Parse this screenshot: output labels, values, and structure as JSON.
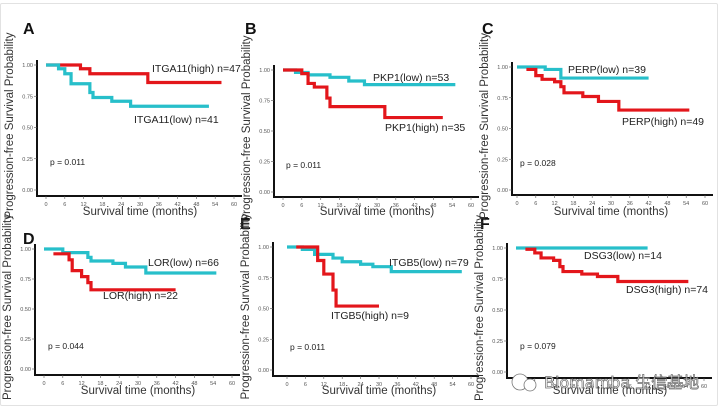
{
  "colors": {
    "high": "#e3161b",
    "low": "#27bfca"
  },
  "watermark": {
    "text": "Biomamba 生信基地",
    "icon": "wechat-icon"
  },
  "chart_data": [
    {
      "type": "line",
      "panel": "A",
      "xlabel": "Survival time (months)",
      "ylabel": "Progression-free Survival Probability",
      "xlim": [
        0,
        60
      ],
      "ylim": [
        0,
        1
      ],
      "xticks": [
        "0",
        "6",
        "12",
        "18",
        "24",
        "30",
        "36",
        "42",
        "48",
        "54",
        "60"
      ],
      "yticks": [
        "0.00",
        "0.25",
        "0.50",
        "0.75",
        "1.00"
      ],
      "p_value": "p = 0.011",
      "series": [
        {
          "name": "ITGA11(high) n=47",
          "group": "high",
          "x": [
            0,
            11,
            14,
            32.5,
            56
          ],
          "y": [
            1.0,
            0.97,
            0.93,
            0.86,
            0.86
          ]
        },
        {
          "name": "ITGA11(low) n=41",
          "group": "low",
          "x": [
            0,
            4,
            6,
            8,
            14,
            15,
            21,
            27,
            52
          ],
          "y": [
            1.0,
            0.97,
            0.93,
            0.85,
            0.78,
            0.74,
            0.71,
            0.67,
            0.67
          ]
        }
      ],
      "legend_pos": {
        "high": "right-top",
        "low": "right-middle"
      }
    },
    {
      "type": "line",
      "panel": "B",
      "xlabel": "Survival time (months)",
      "ylabel": "Progression-free Survival Probability",
      "xlim": [
        0,
        60
      ],
      "ylim": [
        0,
        1
      ],
      "xticks": [
        "0",
        "6",
        "12",
        "18",
        "24",
        "30",
        "36",
        "42",
        "48",
        "54",
        "60"
      ],
      "yticks": [
        "0.00",
        "0.25",
        "0.50",
        "0.75",
        "1.00"
      ],
      "p_value": "p = 0.011",
      "series": [
        {
          "name": "PKP1(low) n=53",
          "group": "low",
          "x": [
            0,
            4,
            8,
            15,
            21,
            26,
            55
          ],
          "y": [
            1.0,
            0.98,
            0.96,
            0.94,
            0.91,
            0.88,
            0.88
          ]
        },
        {
          "name": "PKP1(high) n=35",
          "group": "high",
          "x": [
            0,
            6,
            8,
            10,
            14,
            15,
            32.5,
            51
          ],
          "y": [
            1.0,
            0.97,
            0.89,
            0.86,
            0.77,
            0.7,
            0.61,
            0.61
          ]
        }
      ]
    },
    {
      "type": "line",
      "panel": "C",
      "xlabel": "Survival time (months)",
      "ylabel": "Progression-free Survival Probability",
      "xlim": [
        0,
        60
      ],
      "ylim": [
        0,
        1
      ],
      "xticks": [
        "0",
        "6",
        "12",
        "18",
        "24",
        "30",
        "36",
        "42",
        "48",
        "54",
        "60"
      ],
      "yticks": [
        "0.00",
        "0.25",
        "0.50",
        "0.75",
        "1.00"
      ],
      "p_value": "p = 0.028",
      "series": [
        {
          "name": "PERP(low) n=39",
          "group": "low",
          "x": [
            0,
            9,
            14,
            42
          ],
          "y": [
            1.0,
            0.98,
            0.91,
            0.91
          ]
        },
        {
          "name": "PERP(high) n=49",
          "group": "high",
          "x": [
            3,
            6,
            8,
            12,
            14,
            15,
            21,
            26,
            32.5,
            55
          ],
          "y": [
            0.98,
            0.93,
            0.9,
            0.88,
            0.84,
            0.79,
            0.76,
            0.72,
            0.65,
            0.65
          ]
        }
      ]
    },
    {
      "type": "line",
      "panel": "D",
      "xlabel": "Survival time (months)",
      "ylabel": "Progression-free Survival Probability",
      "xlim": [
        0,
        60
      ],
      "ylim": [
        0,
        1
      ],
      "xticks": [
        "0",
        "6",
        "12",
        "18",
        "24",
        "30",
        "36",
        "42",
        "48",
        "54",
        "60"
      ],
      "yticks": [
        "0.00",
        "0.25",
        "0.50",
        "0.75",
        "1.00"
      ],
      "p_value": "p = 0.044",
      "series": [
        {
          "name": "LOR(low) n=66",
          "group": "low",
          "x": [
            0,
            6,
            14,
            15,
            22,
            26,
            32.5,
            55
          ],
          "y": [
            1.0,
            0.97,
            0.93,
            0.9,
            0.88,
            0.85,
            0.8,
            0.8
          ]
        },
        {
          "name": "LOR(high) n=22",
          "group": "high",
          "x": [
            3,
            8,
            9,
            12,
            14,
            15,
            42
          ],
          "y": [
            0.96,
            0.91,
            0.82,
            0.77,
            0.72,
            0.66,
            0.66
          ]
        }
      ]
    },
    {
      "type": "line",
      "panel": "E",
      "xlabel": "Survival time (months)",
      "ylabel": "Progression-free Survival Probability",
      "xlim": [
        0,
        60
      ],
      "ylim": [
        0,
        1
      ],
      "xticks": [
        "0",
        "6",
        "12",
        "18",
        "24",
        "30",
        "36",
        "42",
        "48",
        "54",
        "60"
      ],
      "yticks": [
        "0.00",
        "0.25",
        "0.50",
        "0.75",
        "1.00"
      ],
      "p_value": "p = 0.011",
      "series": [
        {
          "name": "ITGB5(low) n=79",
          "group": "low",
          "x": [
            0,
            5,
            9,
            15,
            18,
            24,
            28,
            34,
            57
          ],
          "y": [
            1.0,
            0.98,
            0.94,
            0.91,
            0.88,
            0.86,
            0.84,
            0.8,
            0.8
          ]
        },
        {
          "name": "ITGB5(high) n=9",
          "group": "high",
          "x": [
            3,
            10,
            12,
            15,
            16,
            30
          ],
          "y": [
            1.0,
            0.89,
            0.78,
            0.65,
            0.52,
            0.52
          ]
        }
      ]
    },
    {
      "type": "line",
      "panel": "F",
      "xlabel": "Survival time (months)",
      "ylabel": "Progression-free Survival Probability",
      "xlim": [
        0,
        60
      ],
      "ylim": [
        0,
        1
      ],
      "xticks": [
        "0",
        "6",
        "12",
        "18",
        "24",
        "30",
        "36",
        "42",
        "48",
        "54",
        "60"
      ],
      "yticks": [
        "0.00",
        "0.25",
        "0.50",
        "0.75",
        "1.00"
      ],
      "p_value": "p = 0.079",
      "series": [
        {
          "name": "DSG3(low) n=14",
          "group": "low",
          "x": [
            0,
            42
          ],
          "y": [
            1.0,
            1.0
          ]
        },
        {
          "name": "DSG3(high) n=74",
          "group": "high",
          "x": [
            3,
            6,
            8,
            12,
            14,
            15,
            21,
            26,
            32.5,
            55
          ],
          "y": [
            0.99,
            0.96,
            0.92,
            0.9,
            0.85,
            0.81,
            0.79,
            0.77,
            0.73,
            0.73
          ]
        }
      ]
    }
  ]
}
